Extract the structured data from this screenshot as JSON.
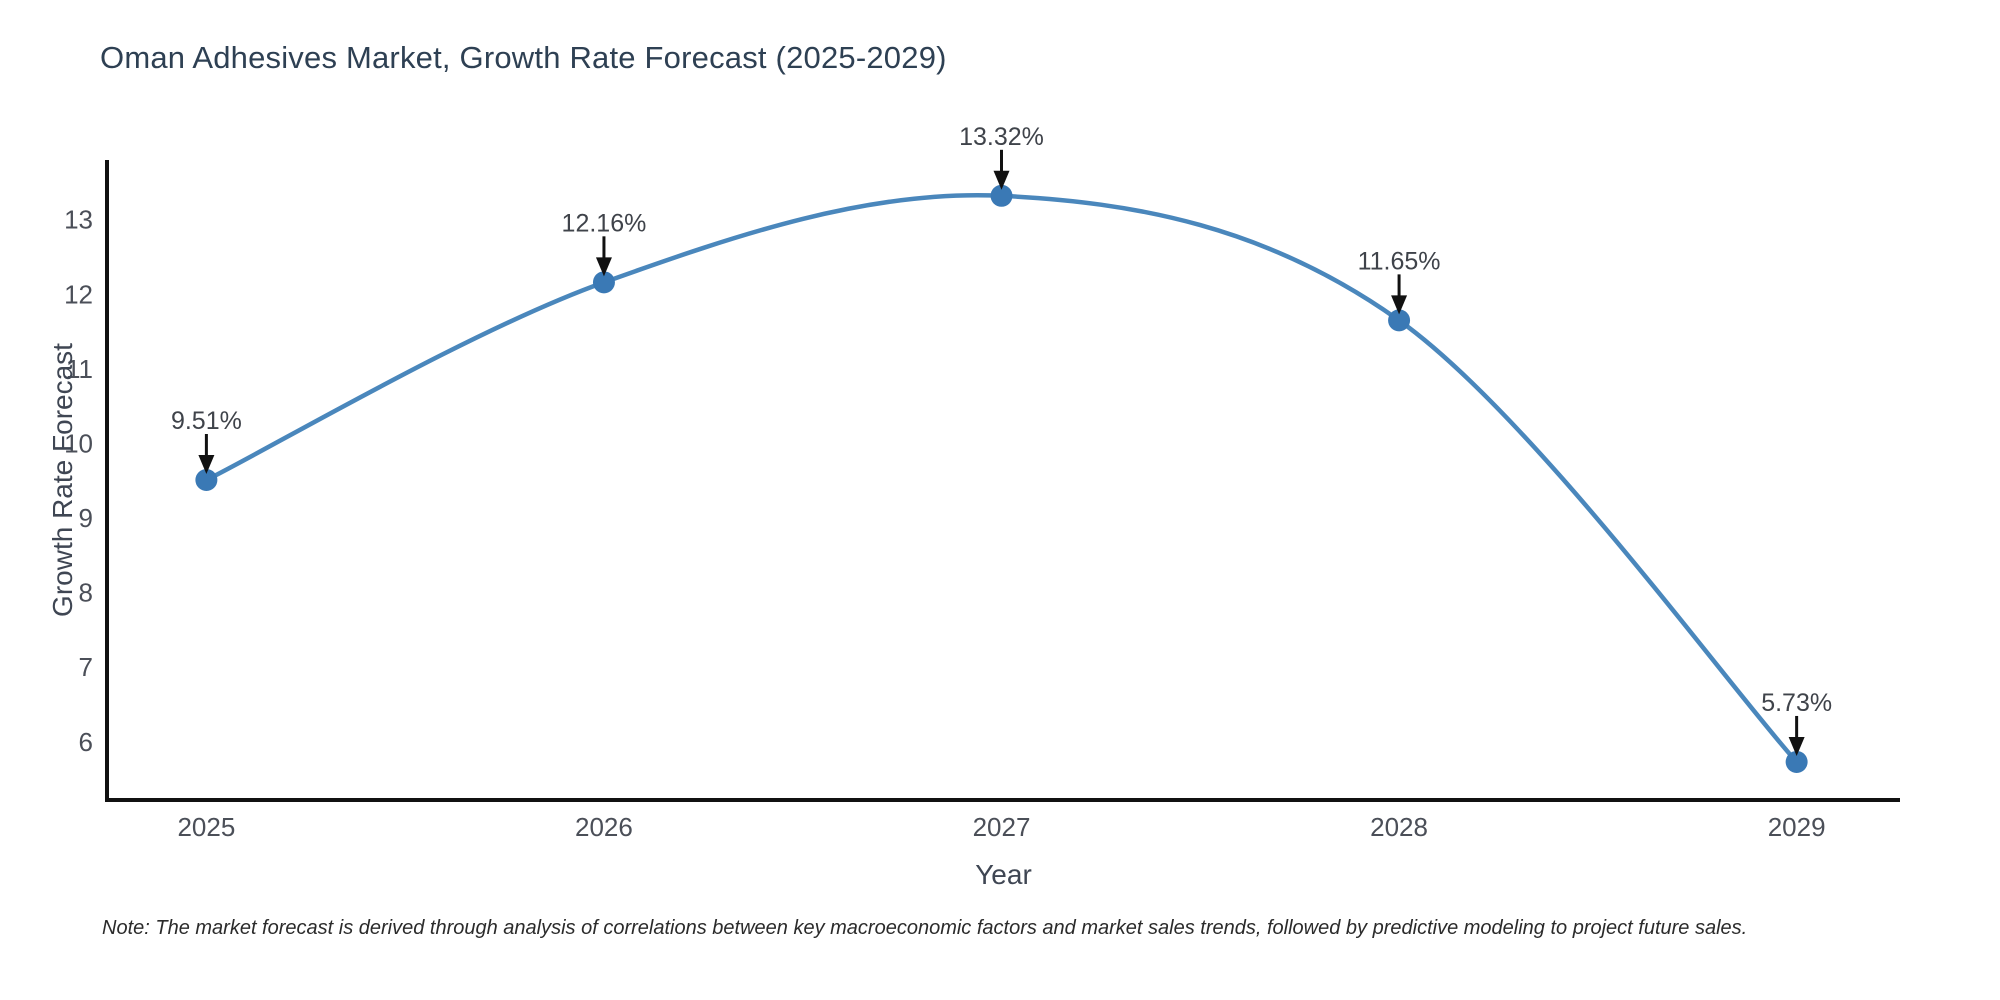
{
  "chart_data": {
    "type": "line",
    "title": "Oman Adhesives Market, Growth Rate Forecast (2025-2029)",
    "xlabel": "Year",
    "ylabel": "Growth Rate Forecast",
    "x": [
      2025,
      2026,
      2027,
      2028,
      2029
    ],
    "y": [
      9.51,
      12.16,
      13.32,
      11.65,
      5.73
    ],
    "point_labels": [
      "9.51%",
      "12.16%",
      "13.32%",
      "11.65%",
      "5.73%"
    ],
    "xticks": [
      "2025",
      "2026",
      "2027",
      "2028",
      "2029"
    ],
    "yticks": [
      6,
      7,
      8,
      9,
      10,
      11,
      12,
      13
    ],
    "xlim": [
      2024.75,
      2029.26
    ],
    "ylim": [
      5.22,
      13.8
    ],
    "line_shape": "spline",
    "grid": false,
    "legend": "none",
    "colors": {
      "line": "#4a87bc",
      "marker": "#3a79b5",
      "axis": "#111111",
      "tick_label": "#4b4f58",
      "axis_title": "#3f4653",
      "annotation_text": "#3f434a",
      "annotation_arrow": "#111111",
      "title": "#2e4053"
    }
  },
  "note": "Note: The market forecast is derived through analysis of correlations between key macroeconomic factors and market sales trends, followed by predictive modeling to project future sales."
}
